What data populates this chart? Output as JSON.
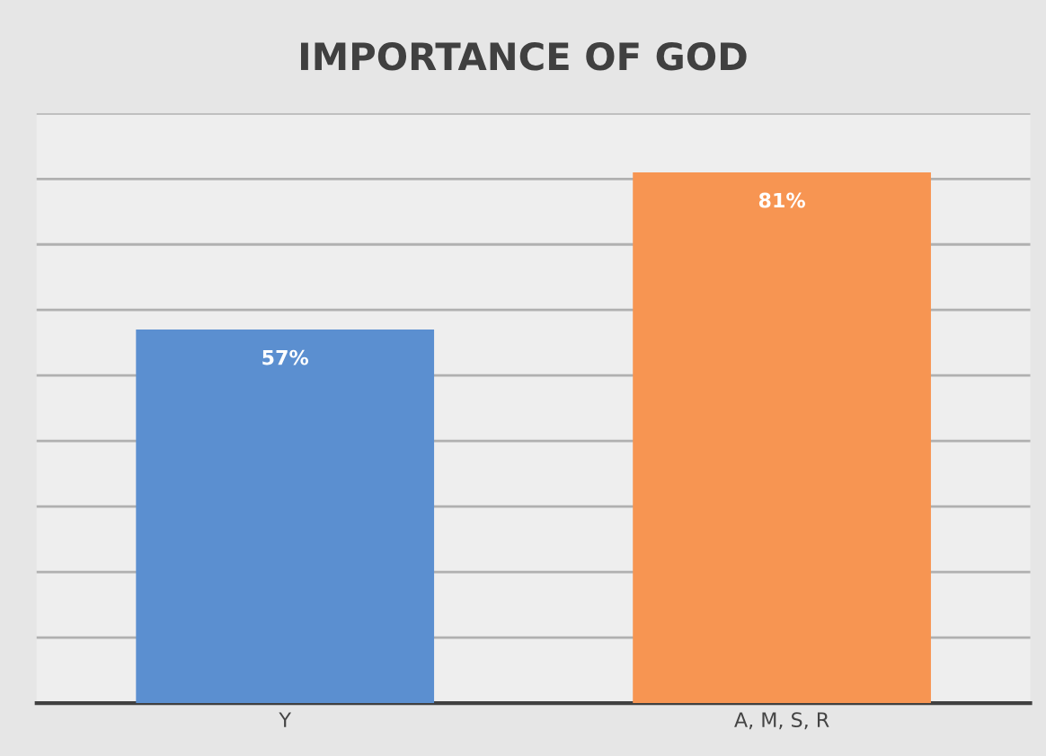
{
  "chart_data": {
    "type": "bar",
    "title": "IMPORTANCE OF GOD",
    "categories": [
      "Y",
      "A, M, S, R"
    ],
    "values": [
      57,
      81
    ],
    "colors": [
      "#5b8fd0",
      "#f79552"
    ],
    "value_labels": [
      "57%",
      "81%"
    ],
    "ylim": [
      0,
      90
    ],
    "yticks": [
      {
        "value": 0,
        "label": null
      },
      {
        "value": 10,
        "label": null
      },
      {
        "value": 20,
        "label": null
      },
      {
        "value": 30,
        "label": null
      },
      {
        "value": 40,
        "label": null
      },
      {
        "value": 50,
        "label": null
      },
      {
        "value": 60,
        "label": null
      },
      {
        "value": 70,
        "label": null
      },
      {
        "value": 80,
        "label": null
      },
      {
        "value": 90,
        "label": null
      }
    ],
    "tick_labels": "x",
    "grid": "y",
    "legend": false
  }
}
